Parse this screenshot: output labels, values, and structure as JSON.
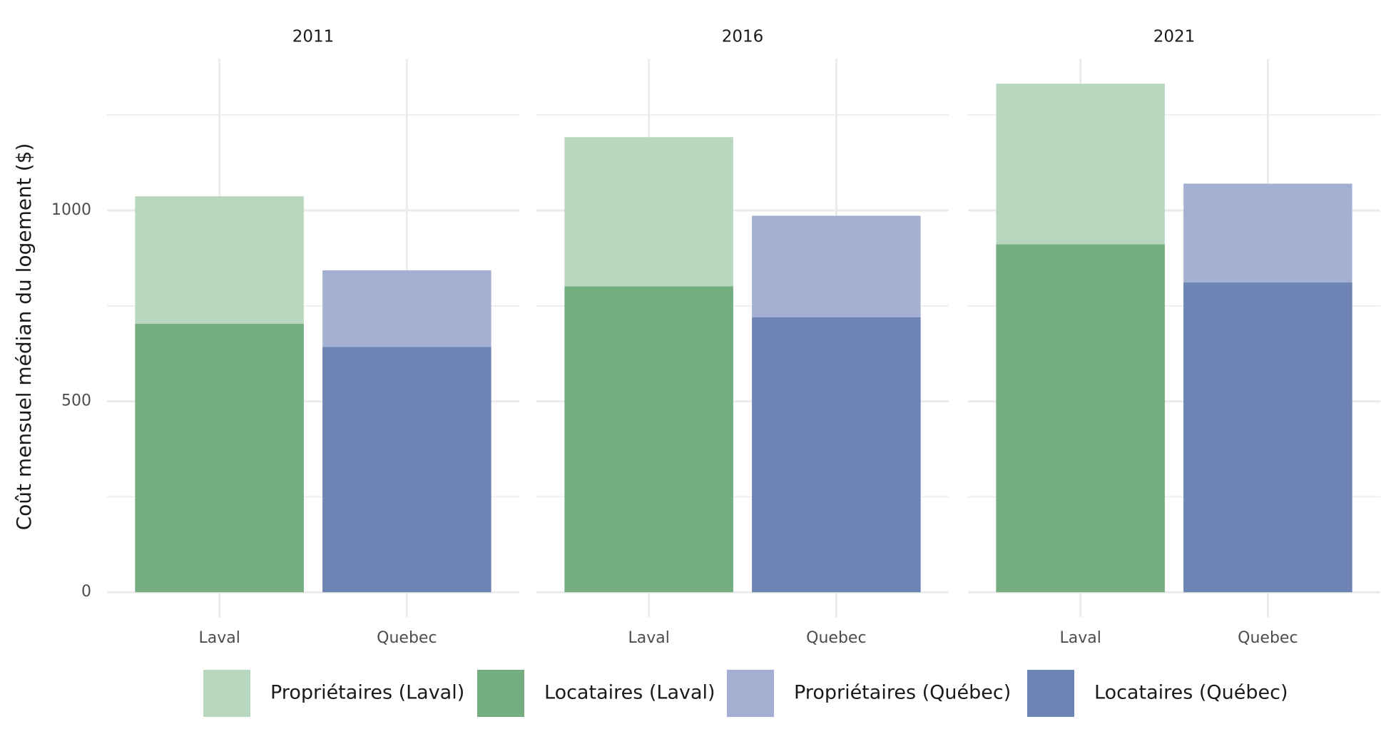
{
  "chart_data": {
    "type": "bar",
    "y_label": "Coût mensuel médian du logement ($)",
    "panels": [
      "2011",
      "2016",
      "2021"
    ],
    "categories": [
      "Laval",
      "Quebec"
    ],
    "series": [
      {
        "name": "Propriétaires (Laval)",
        "color": "#b8d7bf",
        "values": [
          [
            1037,
            null
          ],
          [
            1192,
            null
          ],
          [
            1332,
            null
          ]
        ]
      },
      {
        "name": "Locataires (Laval)",
        "color": "#74ad7f",
        "values": [
          [
            703,
            null
          ],
          [
            801,
            null
          ],
          [
            911,
            null
          ]
        ]
      },
      {
        "name": "Propriétaires (Québec)",
        "color": "#a3b0d1",
        "values": [
          [
            null,
            843
          ],
          [
            null,
            986
          ],
          [
            null,
            1070
          ]
        ]
      },
      {
        "name": "Locataires (Québec)",
        "color": "#6d84b4",
        "values": [
          [
            null,
            642
          ],
          [
            null,
            720
          ],
          [
            null,
            811
          ]
        ]
      }
    ],
    "ylim": [
      -65,
      1397
    ],
    "yticks": [
      0,
      500,
      1000
    ],
    "yminor": [
      250,
      750,
      1250
    ],
    "grid": true,
    "legend": "bottom"
  }
}
